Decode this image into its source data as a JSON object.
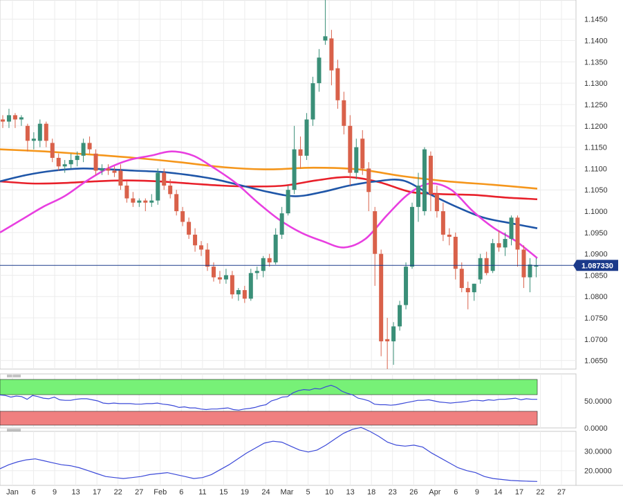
{
  "chart_data": [
    {
      "type": "candlestick",
      "panel": "price",
      "current_price_label": "1.087330",
      "y_ticks": [
        "1.0650",
        "1.0700",
        "1.0750",
        "1.0800",
        "1.0850",
        "1.0900",
        "1.0950",
        "1.1000",
        "1.1050",
        "1.1100",
        "1.1150",
        "1.1200",
        "1.1250",
        "1.1300",
        "1.1350",
        "1.1400",
        "1.1450"
      ],
      "ylim": [
        1.063,
        1.1495
      ],
      "x_ticks": [
        "Jan",
        "6",
        "9",
        "13",
        "17",
        "22",
        "27",
        "Feb",
        "6",
        "11",
        "15",
        "19",
        "24",
        "Mar",
        "5",
        "10",
        "13",
        "18",
        "23",
        "26",
        "Apr",
        "6",
        "9",
        "14",
        "17",
        "22",
        "27"
      ],
      "grid": true,
      "candles": [
        [
          1.1215,
          1.1225,
          1.1195,
          1.121
        ],
        [
          1.121,
          1.124,
          1.1195,
          1.1225
        ],
        [
          1.1225,
          1.123,
          1.1195,
          1.1215
        ],
        [
          1.1215,
          1.1225,
          1.12,
          1.122
        ],
        [
          1.12,
          1.1205,
          1.114,
          1.1165
        ],
        [
          1.1165,
          1.1185,
          1.1145,
          1.117
        ],
        [
          1.1165,
          1.1215,
          1.115,
          1.1205
        ],
        [
          1.1205,
          1.121,
          1.115,
          1.1165
        ],
        [
          1.116,
          1.117,
          1.1115,
          1.1125
        ],
        [
          1.1125,
          1.1135,
          1.1095,
          1.1105
        ],
        [
          1.1105,
          1.112,
          1.109,
          1.111
        ],
        [
          1.111,
          1.1135,
          1.11,
          1.112
        ],
        [
          1.112,
          1.114,
          1.1105,
          1.113
        ],
        [
          1.113,
          1.117,
          1.1115,
          1.116
        ],
        [
          1.116,
          1.1175,
          1.1135,
          1.1145
        ],
        [
          1.1135,
          1.1145,
          1.1085,
          1.1095
        ],
        [
          1.1095,
          1.111,
          1.1085,
          1.11
        ],
        [
          1.11,
          1.111,
          1.1085,
          1.1095
        ],
        [
          1.1095,
          1.1105,
          1.108,
          1.109
        ],
        [
          1.1095,
          1.111,
          1.105,
          1.106
        ],
        [
          1.106,
          1.107,
          1.102,
          1.103
        ],
        [
          1.103,
          1.1045,
          1.101,
          1.102
        ],
        [
          1.102,
          1.103,
          1.101,
          1.1025
        ],
        [
          1.1025,
          1.103,
          1.1,
          1.102
        ],
        [
          1.102,
          1.104,
          1.101,
          1.1025
        ],
        [
          1.1025,
          1.11,
          1.1015,
          1.109
        ],
        [
          1.109,
          1.11,
          1.105,
          1.106
        ],
        [
          1.106,
          1.1075,
          1.103,
          1.104
        ],
        [
          1.104,
          1.105,
          1.099,
          1.1
        ],
        [
          1.1,
          1.101,
          1.0965,
          1.0975
        ],
        [
          1.0975,
          1.0985,
          1.0935,
          1.0945
        ],
        [
          1.0945,
          1.096,
          1.0905,
          1.092
        ],
        [
          1.092,
          1.093,
          1.0895,
          1.091
        ],
        [
          1.091,
          1.0925,
          1.086,
          1.087
        ],
        [
          1.087,
          1.088,
          1.0835,
          1.0845
        ],
        [
          1.0845,
          1.086,
          1.083,
          1.084
        ],
        [
          1.084,
          1.0865,
          1.083,
          1.085
        ],
        [
          1.085,
          1.086,
          1.0795,
          1.0805
        ],
        [
          1.0805,
          1.082,
          1.079,
          1.0815
        ],
        [
          1.0815,
          1.0825,
          1.0785,
          1.0795
        ],
        [
          1.0795,
          1.0865,
          1.079,
          1.0855
        ],
        [
          1.0855,
          1.087,
          1.084,
          1.086
        ],
        [
          1.086,
          1.0895,
          1.0845,
          1.089
        ],
        [
          1.089,
          1.09,
          1.087,
          1.088
        ],
        [
          1.088,
          1.096,
          1.0875,
          1.0945
        ],
        [
          1.0945,
          1.101,
          1.0935,
          1.0995
        ],
        [
          1.0995,
          1.106,
          1.099,
          1.105
        ],
        [
          1.105,
          1.12,
          1.104,
          1.1145
        ],
        [
          1.1145,
          1.1175,
          1.11,
          1.113
        ],
        [
          1.113,
          1.123,
          1.112,
          1.1215
        ],
        [
          1.1215,
          1.1315,
          1.12,
          1.13
        ],
        [
          1.13,
          1.138,
          1.128,
          1.136
        ],
        [
          1.14,
          1.1495,
          1.139,
          1.141
        ],
        [
          1.1405,
          1.1425,
          1.1295,
          1.133
        ],
        [
          1.1335,
          1.1355,
          1.124,
          1.126
        ],
        [
          1.126,
          1.128,
          1.118,
          1.12
        ],
        [
          1.12,
          1.1225,
          1.106,
          1.109
        ],
        [
          1.109,
          1.117,
          1.1075,
          1.115
        ],
        [
          1.117,
          1.119,
          1.1085,
          1.11
        ],
        [
          1.11,
          1.1115,
          1.1,
          1.1045
        ],
        [
          1.1,
          1.101,
          1.0825,
          1.09
        ],
        [
          1.09,
          1.091,
          1.066,
          1.0695
        ],
        [
          1.07,
          1.075,
          1.063,
          1.0695
        ],
        [
          1.0695,
          1.074,
          1.064,
          1.073
        ],
        [
          1.073,
          1.079,
          1.072,
          1.078
        ],
        [
          1.078,
          1.088,
          1.077,
          1.087
        ],
        [
          1.087,
          1.102,
          1.0865,
          1.101
        ],
        [
          1.101,
          1.109,
          1.0975,
          1.106
        ],
        [
          1.1,
          1.115,
          1.099,
          1.1145
        ],
        [
          1.113,
          1.114,
          1.1,
          1.104
        ],
        [
          1.104,
          1.106,
          1.0985,
          1.1
        ],
        [
          1.1,
          1.102,
          1.093,
          1.0945
        ],
        [
          1.0945,
          1.096,
          1.092,
          1.094
        ],
        [
          1.094,
          1.095,
          1.084,
          1.0865
        ],
        [
          1.0865,
          1.088,
          1.081,
          1.082
        ],
        [
          1.082,
          1.0835,
          1.077,
          1.081
        ],
        [
          1.081,
          1.083,
          1.079,
          1.083
        ],
        [
          1.084,
          1.09,
          1.083,
          1.089
        ],
        [
          1.089,
          1.0905,
          1.085,
          1.0855
        ],
        [
          1.086,
          1.0935,
          1.0855,
          1.0925
        ],
        [
          1.0925,
          1.0955,
          1.0905,
          1.0915
        ],
        [
          1.0915,
          1.095,
          1.0895,
          1.0935
        ],
        [
          1.0935,
          1.099,
          1.092,
          1.0985
        ],
        [
          1.0985,
          1.099,
          1.087,
          1.091
        ],
        [
          1.091,
          1.092,
          1.082,
          1.0845
        ],
        [
          1.0845,
          1.089,
          1.081,
          1.0875
        ],
        [
          1.087,
          1.089,
          1.0845,
          1.0873
        ]
      ],
      "series": [
        {
          "kind": "moving-average",
          "color": "#e83fe0",
          "values": [
            1.095,
            1.098,
            1.101,
            1.1035,
            1.107,
            1.11,
            1.112,
            1.113,
            1.114,
            1.113,
            1.11,
            1.1065,
            1.102,
            1.098,
            1.095,
            1.093,
            1.0915,
            1.0935,
            1.099,
            1.104,
            1.1065,
            1.105,
            1.1,
            1.096,
            1.093,
            1.089
          ]
        },
        {
          "kind": "moving-average",
          "color": "#1f56a8",
          "values": [
            1.107,
            1.1085,
            1.1095,
            1.11,
            1.1098,
            1.1095,
            1.1092,
            1.1085,
            1.1075,
            1.106,
            1.1045,
            1.1035,
            1.1045,
            1.106,
            1.107,
            1.1072,
            1.104,
            1.101,
            1.0985,
            1.0972,
            1.096
          ]
        },
        {
          "kind": "moving-average",
          "color": "#e8202a",
          "values": [
            1.107,
            1.1065,
            1.1066,
            1.107,
            1.1072,
            1.107,
            1.1065,
            1.106,
            1.1058,
            1.106,
            1.1072,
            1.108,
            1.1068,
            1.1045,
            1.104,
            1.1038,
            1.1032,
            1.1028
          ]
        },
        {
          "kind": "moving-average",
          "color": "#f5961b",
          "values": [
            1.1145,
            1.114,
            1.1133,
            1.1125,
            1.1115,
            1.1103,
            1.1098,
            1.1102,
            1.1098,
            1.1082,
            1.107,
            1.1062,
            1.1053
          ]
        }
      ]
    },
    {
      "type": "line",
      "panel": "oscillator-1",
      "y_ticks": [
        "0.0000",
        "50.0000"
      ],
      "ylim": [
        0,
        100
      ],
      "bands": {
        "upper_color": "#77f177",
        "lower_color": "#f08080"
      },
      "series": [
        {
          "color": "#3a48d8",
          "values": [
            61,
            60,
            57,
            59,
            58,
            53,
            60,
            58,
            55,
            54,
            57,
            52,
            51,
            51,
            53,
            54,
            54,
            52,
            50,
            46,
            45,
            46,
            45,
            45,
            45,
            44,
            44,
            45,
            45,
            46,
            44,
            43,
            41,
            38,
            39,
            37,
            37,
            35,
            34,
            35,
            35,
            36,
            37,
            34,
            33,
            35,
            36,
            38,
            41,
            43,
            50,
            53,
            57,
            58,
            65,
            69,
            71,
            70,
            73,
            72,
            76,
            79,
            75,
            68,
            64,
            61,
            55,
            53,
            50,
            44,
            43,
            43,
            42,
            43,
            45,
            47,
            49,
            51,
            51,
            52,
            50,
            48,
            47,
            46,
            47,
            48,
            49,
            51,
            51,
            50,
            52,
            51,
            53,
            53,
            54,
            55,
            52,
            54,
            53,
            53
          ]
        }
      ]
    },
    {
      "type": "line",
      "panel": "oscillator-2",
      "y_ticks": [
        "20.0000",
        "30.0000"
      ],
      "ylim": [
        12.5,
        40
      ],
      "series": [
        {
          "color": "#3a48d8",
          "values": [
            21,
            23,
            24.5,
            25.5,
            26,
            25,
            24,
            23,
            22.5,
            21.5,
            20,
            18.5,
            17,
            16.5,
            16,
            16.5,
            17,
            18,
            18.5,
            19,
            18,
            17,
            16,
            16.5,
            18,
            20.5,
            23,
            26,
            29,
            31.5,
            34,
            35,
            34.5,
            32.5,
            30.5,
            29.5,
            30.5,
            33,
            36,
            39,
            41,
            42,
            40,
            37.5,
            34.5,
            33,
            32.5,
            33,
            32,
            29,
            26.5,
            24,
            21.5,
            20,
            19,
            17,
            16,
            15.5,
            15,
            14.8,
            14.6,
            14.5
          ]
        }
      ]
    }
  ]
}
